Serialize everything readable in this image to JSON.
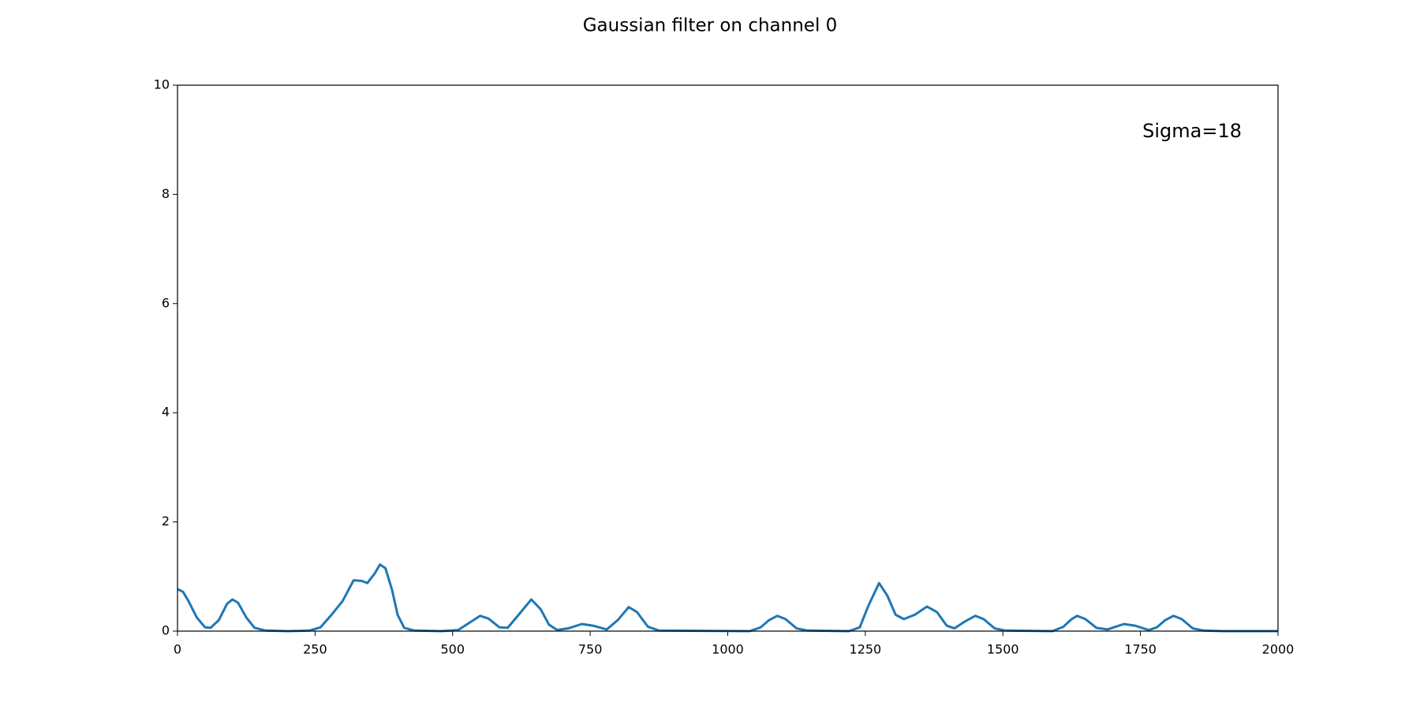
{
  "chart_data": {
    "type": "line",
    "title": "Gaussian filter on channel 0",
    "annotation": "Sigma=18",
    "x": [
      0,
      10,
      20,
      35,
      50,
      60,
      75,
      90,
      100,
      110,
      125,
      140,
      160,
      200,
      240,
      260,
      280,
      300,
      320,
      335,
      345,
      358,
      368,
      378,
      390,
      400,
      412,
      430,
      480,
      510,
      530,
      550,
      565,
      585,
      600,
      620,
      643,
      660,
      675,
      690,
      710,
      735,
      755,
      780,
      800,
      820,
      835,
      855,
      875,
      1040,
      1060,
      1075,
      1090,
      1105,
      1125,
      1145,
      1220,
      1240,
      1255,
      1275,
      1290,
      1305,
      1320,
      1340,
      1362,
      1380,
      1398,
      1412,
      1430,
      1450,
      1465,
      1485,
      1505,
      1590,
      1610,
      1625,
      1635,
      1650,
      1670,
      1690,
      1705,
      1720,
      1740,
      1765,
      1780,
      1795,
      1810,
      1825,
      1845,
      1865,
      1900,
      2000
    ],
    "values": [
      0.77,
      0.72,
      0.55,
      0.25,
      0.07,
      0.06,
      0.2,
      0.5,
      0.58,
      0.52,
      0.25,
      0.06,
      0.01,
      0,
      0.01,
      0.07,
      0.3,
      0.55,
      0.93,
      0.92,
      0.88,
      1.05,
      1.22,
      1.15,
      0.75,
      0.3,
      0.06,
      0.01,
      0,
      0.02,
      0.15,
      0.28,
      0.23,
      0.07,
      0.06,
      0.3,
      0.58,
      0.4,
      0.12,
      0.02,
      0.05,
      0.13,
      0.1,
      0.03,
      0.2,
      0.44,
      0.35,
      0.08,
      0.01,
      0,
      0.07,
      0.2,
      0.28,
      0.22,
      0.05,
      0.01,
      0,
      0.07,
      0.45,
      0.88,
      0.65,
      0.3,
      0.22,
      0.3,
      0.45,
      0.35,
      0.1,
      0.05,
      0.17,
      0.28,
      0.22,
      0.05,
      0.01,
      0,
      0.08,
      0.22,
      0.28,
      0.22,
      0.06,
      0.03,
      0.08,
      0.13,
      0.1,
      0.02,
      0.07,
      0.2,
      0.28,
      0.22,
      0.05,
      0.01,
      0,
      0
    ],
    "color": "#1f77b4",
    "xlim": [
      0,
      2000
    ],
    "xticks": [
      0,
      250,
      500,
      750,
      1000,
      1250,
      1500,
      1750,
      2000
    ],
    "ylim": [
      0,
      10
    ],
    "yticks": [
      0,
      2,
      4,
      6,
      8,
      10
    ],
    "grid": false
  }
}
